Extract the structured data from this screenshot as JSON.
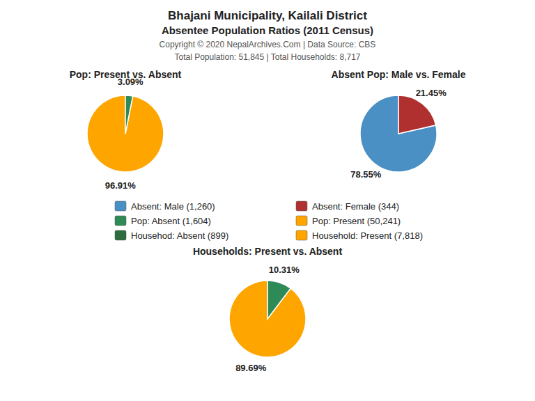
{
  "title": "Bhajani Municipality, Kailali District",
  "subtitle": "Absentee Population Ratios (2011 Census)",
  "annotations": [
    "Copyright © 2020 NepalArchives.Com | Data Source: CBS",
    "Total Population: 51,845 | Total Households: 8,717"
  ],
  "legend_entries": [
    {
      "name": "Absent: Male (1,260)",
      "color": "#4A90C4"
    },
    {
      "name": "Absent: Female (344)",
      "color": "#B03030"
    },
    {
      "name": "Pop: Absent (1,604)",
      "color": "#2E8B57"
    },
    {
      "name": "Pop: Present (50,241)",
      "color": "#FFA500"
    },
    {
      "name": "Househod: Absent (899)",
      "color": "#2E6B3E"
    },
    {
      "name": "Household: Present (7,818)",
      "color": "#FFA500"
    }
  ],
  "chart_data": [
    {
      "type": "pie",
      "title": "Pop: Present vs. Absent",
      "values": [
        96.91,
        3.09
      ],
      "value_labels": [
        "96.91%",
        "3.09%"
      ],
      "colors": [
        "#FFA500",
        "#2E8B57"
      ],
      "data_labels": true
    },
    {
      "type": "pie",
      "title": "Absent Pop: Male vs. Female",
      "values": [
        78.55,
        21.45
      ],
      "value_labels": [
        "78.55%",
        "21.45%"
      ],
      "colors": [
        "#4A90C4",
        "#B03030"
      ],
      "data_labels": true
    },
    {
      "type": "pie",
      "title": "Households: Present vs. Absent",
      "values": [
        89.69,
        10.31
      ],
      "value_labels": [
        "89.69%",
        "10.31%"
      ],
      "colors": [
        "#FFA500",
        "#2E8B57"
      ],
      "data_labels": true
    }
  ]
}
